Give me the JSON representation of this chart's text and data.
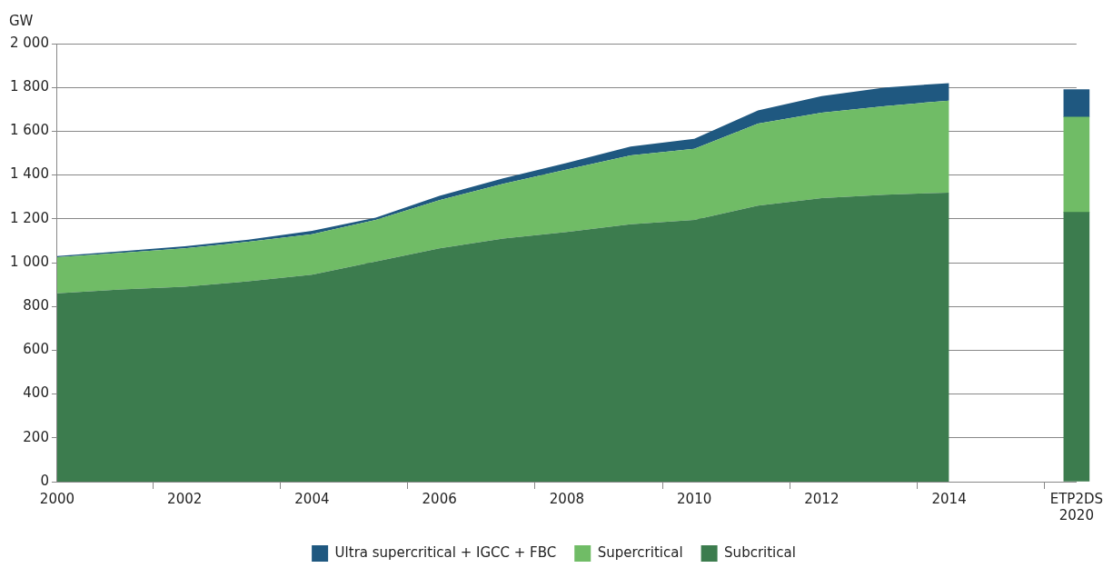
{
  "chart_data": {
    "type": "area",
    "ylabel": "GW",
    "stacked": true,
    "grid": "y",
    "legend": "bottom",
    "categories": [
      "2000",
      null,
      "2002",
      null,
      "2004",
      null,
      "2006",
      null,
      "2008",
      null,
      "2010",
      null,
      "2012",
      null,
      "2014",
      null,
      "ETP2DS\n2020"
    ],
    "ylim": [
      0,
      2000
    ],
    "yticks": [
      0,
      200,
      400,
      600,
      800,
      {
        "value": 1000,
        "label": "1 000"
      },
      {
        "value": 1200,
        "label": "1 200"
      },
      {
        "value": 1400,
        "label": "1 400"
      },
      {
        "value": 1600,
        "label": "1 600"
      },
      {
        "value": 1800,
        "label": "1 800"
      },
      {
        "value": 2000,
        "label": "2 000"
      }
    ],
    "series": [
      {
        "name": "Subcritical",
        "color": "#3c7c4e",
        "values": [
          860,
          878,
          890,
          915,
          945,
          1005,
          1065,
          1110,
          1140,
          1175,
          1195,
          1260,
          1295,
          1310,
          1320,
          null,
          null
        ]
      },
      {
        "name": "Supercritical",
        "color": "#70bc66",
        "values": [
          165,
          167,
          175,
          180,
          185,
          190,
          220,
          250,
          285,
          315,
          325,
          375,
          390,
          405,
          420,
          null,
          null
        ]
      },
      {
        "name": "Ultra supercritical + IGCC + FBC",
        "color": "#1f5880",
        "values": [
          5,
          7,
          10,
          10,
          15,
          10,
          20,
          25,
          30,
          40,
          45,
          60,
          75,
          85,
          80,
          null,
          null
        ]
      },
      {
        "type": "bar",
        "color": "#3c7c4e",
        "values": [
          null,
          null,
          null,
          null,
          null,
          null,
          null,
          null,
          null,
          null,
          null,
          null,
          null,
          null,
          null,
          null,
          1230
        ]
      },
      {
        "type": "bar",
        "color": "#70bc66",
        "values": [
          null,
          null,
          null,
          null,
          null,
          null,
          null,
          null,
          null,
          null,
          null,
          null,
          null,
          null,
          null,
          null,
          435
        ]
      },
      {
        "type": "bar",
        "color": "#1f5880",
        "values": [
          null,
          null,
          null,
          null,
          null,
          null,
          null,
          null,
          null,
          null,
          null,
          null,
          null,
          null,
          null,
          null,
          125
        ]
      }
    ]
  }
}
